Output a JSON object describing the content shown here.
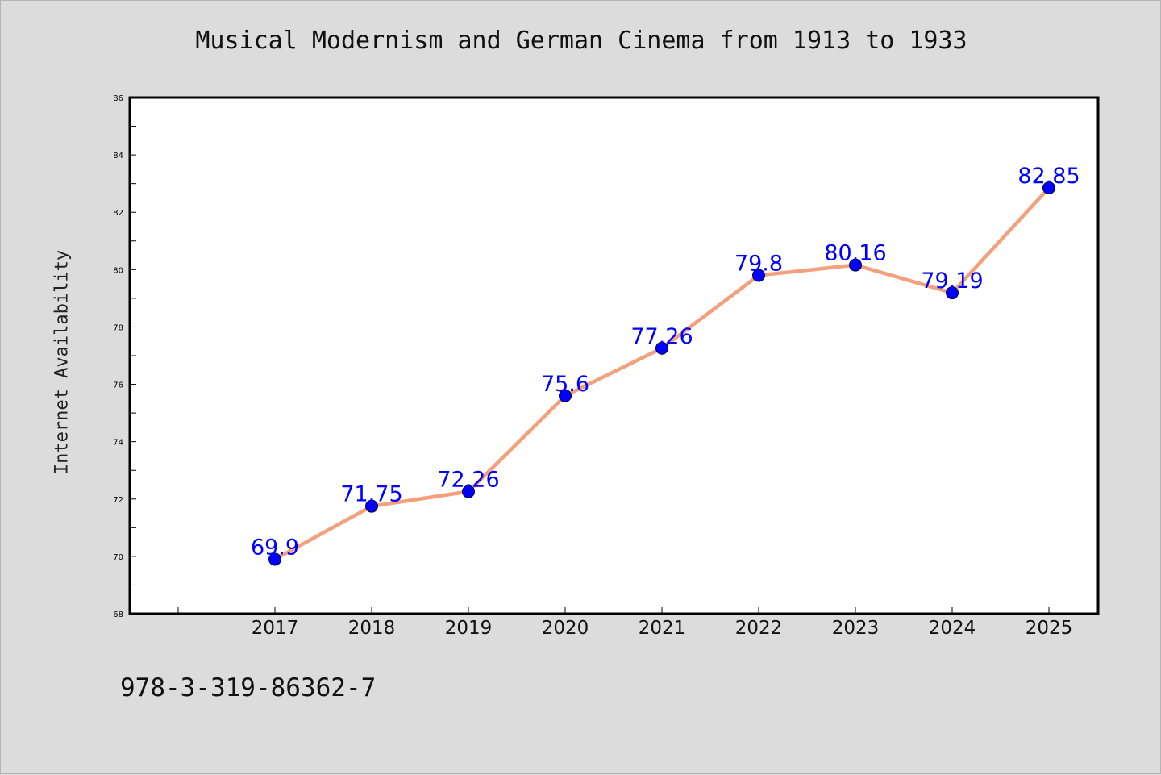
{
  "chart_data": {
    "type": "line",
    "title": "Musical Modernism and German Cinema from 1913 to 1933",
    "xlabel": "",
    "ylabel": "Internet Availability",
    "categories": [
      "2017",
      "2018",
      "2019",
      "2020",
      "2021",
      "2022",
      "2023",
      "2024",
      "2025"
    ],
    "series": [
      {
        "values": [
          69.9,
          71.75,
          72.26,
          75.6,
          77.26,
          79.8,
          80.16,
          79.19,
          82.85
        ]
      }
    ],
    "data_labels": [
      "69.9",
      "71.75",
      "72.26",
      "75.6",
      "77.26",
      "79.8",
      "80.16",
      "79.19",
      "82.85"
    ],
    "ylim": [
      68,
      86
    ],
    "yticks": [
      "68",
      "70",
      "72",
      "74",
      "76",
      "78",
      "80",
      "82",
      "84",
      "86"
    ],
    "grid": false,
    "colors": {
      "line": "#f4a07c",
      "marker": "#0000ff",
      "label": "#0000ff"
    }
  },
  "footnote": "978-3-319-86362-7"
}
